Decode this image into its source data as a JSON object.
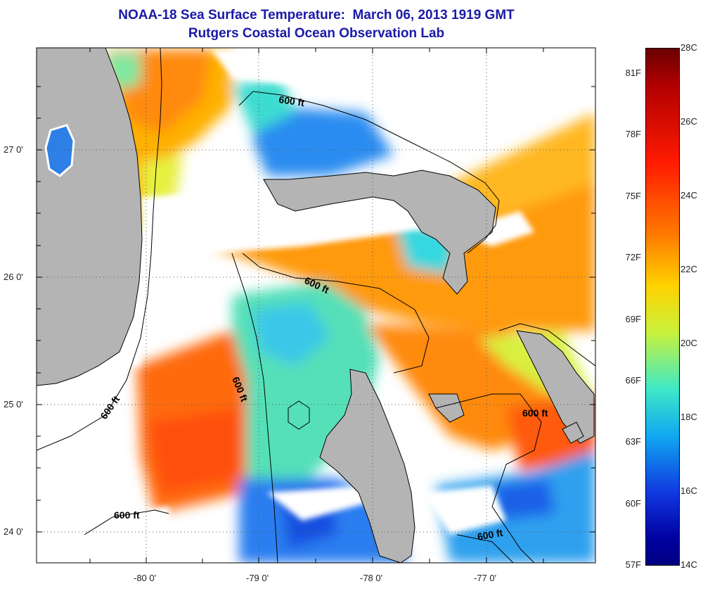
{
  "title": {
    "line1": "NOAA-18 Sea Surface Temperature:  March 06, 2013 1919 GMT",
    "line2": "Rutgers Coastal Ocean Observation Lab"
  },
  "map": {
    "lat_labels": [
      "27 0'",
      "26 0'",
      "25 0'",
      "24 0'"
    ],
    "lon_labels": [
      "-80 0'",
      "-79 0'",
      "-78 0'",
      "-77 0'"
    ],
    "contour_label": "600 ft",
    "colors": {
      "land": "#b4b4b4",
      "cloud": "#ffffff",
      "frame": "#000000"
    }
  },
  "colorbar": {
    "fahrenheit": [
      "81F",
      "78F",
      "75F",
      "72F",
      "69F",
      "66F",
      "63F",
      "60F",
      "57F"
    ],
    "celsius": [
      "28C",
      "26C",
      "24C",
      "22C",
      "20C",
      "18C",
      "16C",
      "14C"
    ],
    "range_c": [
      14,
      28
    ]
  }
}
